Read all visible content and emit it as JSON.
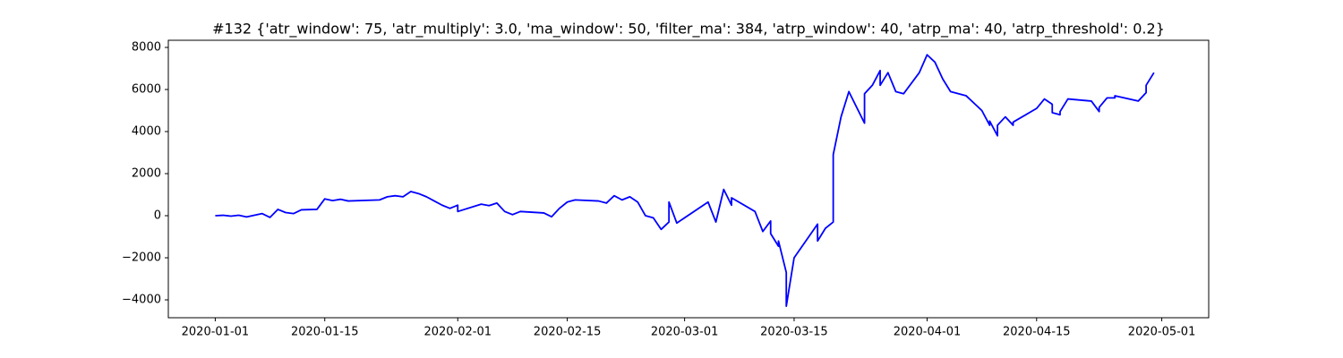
{
  "chart_data": {
    "type": "line",
    "title": "#132 {'atr_window': 75, 'atr_multiply': 3.0, 'ma_window': 50, 'filter_ma': 384, 'atrp_window': 40, 'atrp_ma': 40, 'atrp_threshold': 0.2}",
    "color": "#0000ff",
    "x": [
      "2020-01-01",
      "2020-01-02",
      "2020-01-03",
      "2020-01-04",
      "2020-01-05",
      "2020-01-07",
      "2020-01-08",
      "2020-01-09",
      "2020-01-10",
      "2020-01-11",
      "2020-01-12",
      "2020-01-14",
      "2020-01-15",
      "2020-01-16",
      "2020-01-17",
      "2020-01-18",
      "2020-01-22",
      "2020-01-23",
      "2020-01-24",
      "2020-01-25",
      "2020-01-26",
      "2020-01-27",
      "2020-01-28",
      "2020-01-29",
      "2020-01-30",
      "2020-01-31",
      "2020-02-01",
      "2020-02-01",
      "2020-02-04",
      "2020-02-05",
      "2020-02-06",
      "2020-02-07",
      "2020-02-08",
      "2020-02-09",
      "2020-02-12",
      "2020-02-13",
      "2020-02-14",
      "2020-02-15",
      "2020-02-16",
      "2020-02-19",
      "2020-02-20",
      "2020-02-21",
      "2020-02-22",
      "2020-02-23",
      "2020-02-24",
      "2020-02-25",
      "2020-02-26",
      "2020-02-27",
      "2020-02-28",
      "2020-02-28",
      "2020-02-29",
      "2020-03-04",
      "2020-03-05",
      "2020-03-06",
      "2020-03-07",
      "2020-03-07",
      "2020-03-10",
      "2020-03-11",
      "2020-03-12",
      "2020-03-12",
      "2020-03-13",
      "2020-03-13",
      "2020-03-14",
      "2020-03-14",
      "2020-03-15",
      "2020-03-18",
      "2020-03-18",
      "2020-03-19",
      "2020-03-20",
      "2020-03-20",
      "2020-03-20",
      "2020-03-21",
      "2020-03-22",
      "2020-03-24",
      "2020-03-24",
      "2020-03-25",
      "2020-03-26",
      "2020-03-26",
      "2020-03-27",
      "2020-03-28",
      "2020-03-29",
      "2020-03-31",
      "2020-04-01",
      "2020-04-02",
      "2020-04-03",
      "2020-04-04",
      "2020-04-06",
      "2020-04-08",
      "2020-04-09",
      "2020-04-09",
      "2020-04-10",
      "2020-04-10",
      "2020-04-11",
      "2020-04-12",
      "2020-04-12",
      "2020-04-15",
      "2020-04-16",
      "2020-04-17",
      "2020-04-17",
      "2020-04-18",
      "2020-04-18",
      "2020-04-19",
      "2020-04-22",
      "2020-04-23",
      "2020-04-23",
      "2020-04-24",
      "2020-04-25",
      "2020-04-25",
      "2020-04-28",
      "2020-04-29",
      "2020-04-29",
      "2020-04-30"
    ],
    "values": [
      0,
      20,
      -20,
      20,
      -60,
      100,
      -80,
      300,
      150,
      100,
      280,
      300,
      800,
      720,
      780,
      700,
      750,
      900,
      950,
      900,
      1150,
      1050,
      900,
      700,
      500,
      350,
      500,
      200,
      550,
      480,
      600,
      200,
      50,
      200,
      130,
      -50,
      350,
      650,
      750,
      700,
      600,
      950,
      750,
      900,
      650,
      0,
      -100,
      -650,
      -300,
      650,
      -350,
      650,
      -300,
      1250,
      500,
      850,
      200,
      -750,
      -250,
      -850,
      -1450,
      -1200,
      -2700,
      -4300,
      -2000,
      -400,
      -1200,
      -600,
      -300,
      400,
      2900,
      4700,
      5900,
      4400,
      5800,
      6200,
      6900,
      6200,
      6800,
      5900,
      5800,
      6800,
      7650,
      7300,
      6500,
      5900,
      5700,
      5000,
      4300,
      4500,
      3800,
      4300,
      4700,
      4300,
      4450,
      5100,
      5550,
      5300,
      4900,
      4800,
      4950,
      5550,
      5450,
      4950,
      5150,
      5600,
      5600,
      5700,
      5450,
      5850,
      6200,
      6800
    ],
    "xlim": [
      "2019-12-26",
      "2020-05-07"
    ],
    "xticks": [
      "2020-01-01",
      "2020-01-15",
      "2020-02-01",
      "2020-02-15",
      "2020-03-01",
      "2020-03-15",
      "2020-04-01",
      "2020-04-15",
      "2020-05-01"
    ],
    "ylim": [
      -4850,
      8340
    ],
    "yticks": [
      {
        "value": -4000,
        "label": "−4000"
      },
      {
        "value": -2000,
        "label": "−2000"
      },
      0,
      2000,
      4000,
      6000,
      8000
    ]
  }
}
